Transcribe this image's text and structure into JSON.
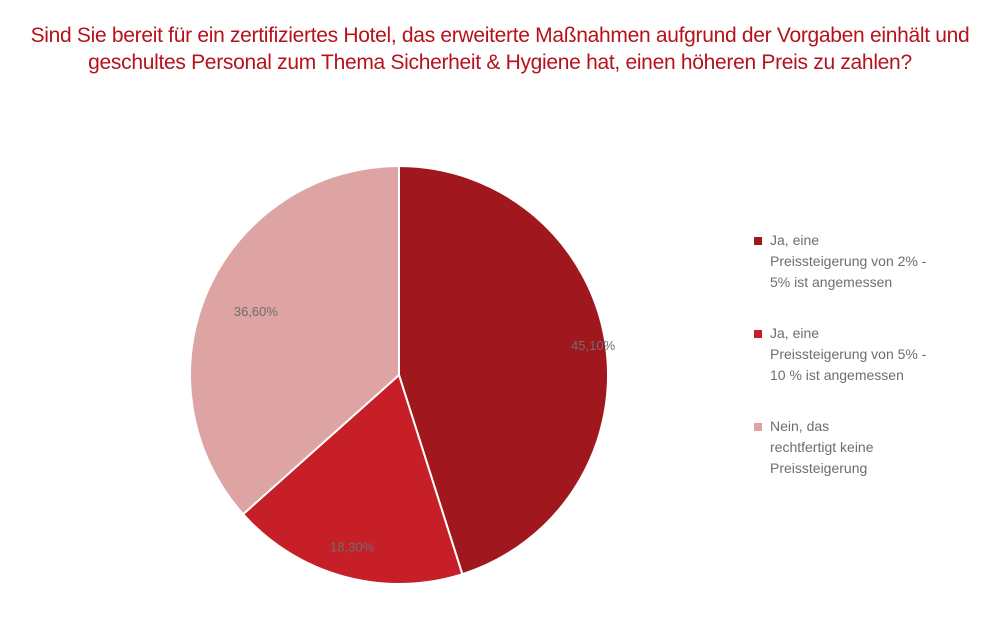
{
  "chart_data": {
    "type": "pie",
    "title": [
      "Sind Sie bereit für ein zertifiziertes Hotel, das erweiterte Maßnahmen aufgrund der Vorgaben einhält und",
      "geschultes Personal zum Thema Sicherheit & Hygiene hat, einen höheren Preis zu zahlen?"
    ],
    "slices": [
      {
        "label": "Ja, eine\nPreissteigerung von 2% -\n5% ist angemessen",
        "value": 45.1,
        "display": "45,10%",
        "color": "#a0181e"
      },
      {
        "label": "Ja, eine\nPreissteigerung von 5% -\n10 % ist angemessen",
        "value": 18.3,
        "display": "18,30%",
        "color": "#c61f27"
      },
      {
        "label": "Nein, das\nrechtfertigt keine\nPreissteigerung",
        "value": 36.6,
        "display": "36,60%",
        "color": "#dea3a3"
      }
    ],
    "start_angle": "12 o'clock",
    "direction": "clockwise",
    "legend_position": "right",
    "data_label_color": "#6e6e6e",
    "title_color": "#b5121b"
  }
}
